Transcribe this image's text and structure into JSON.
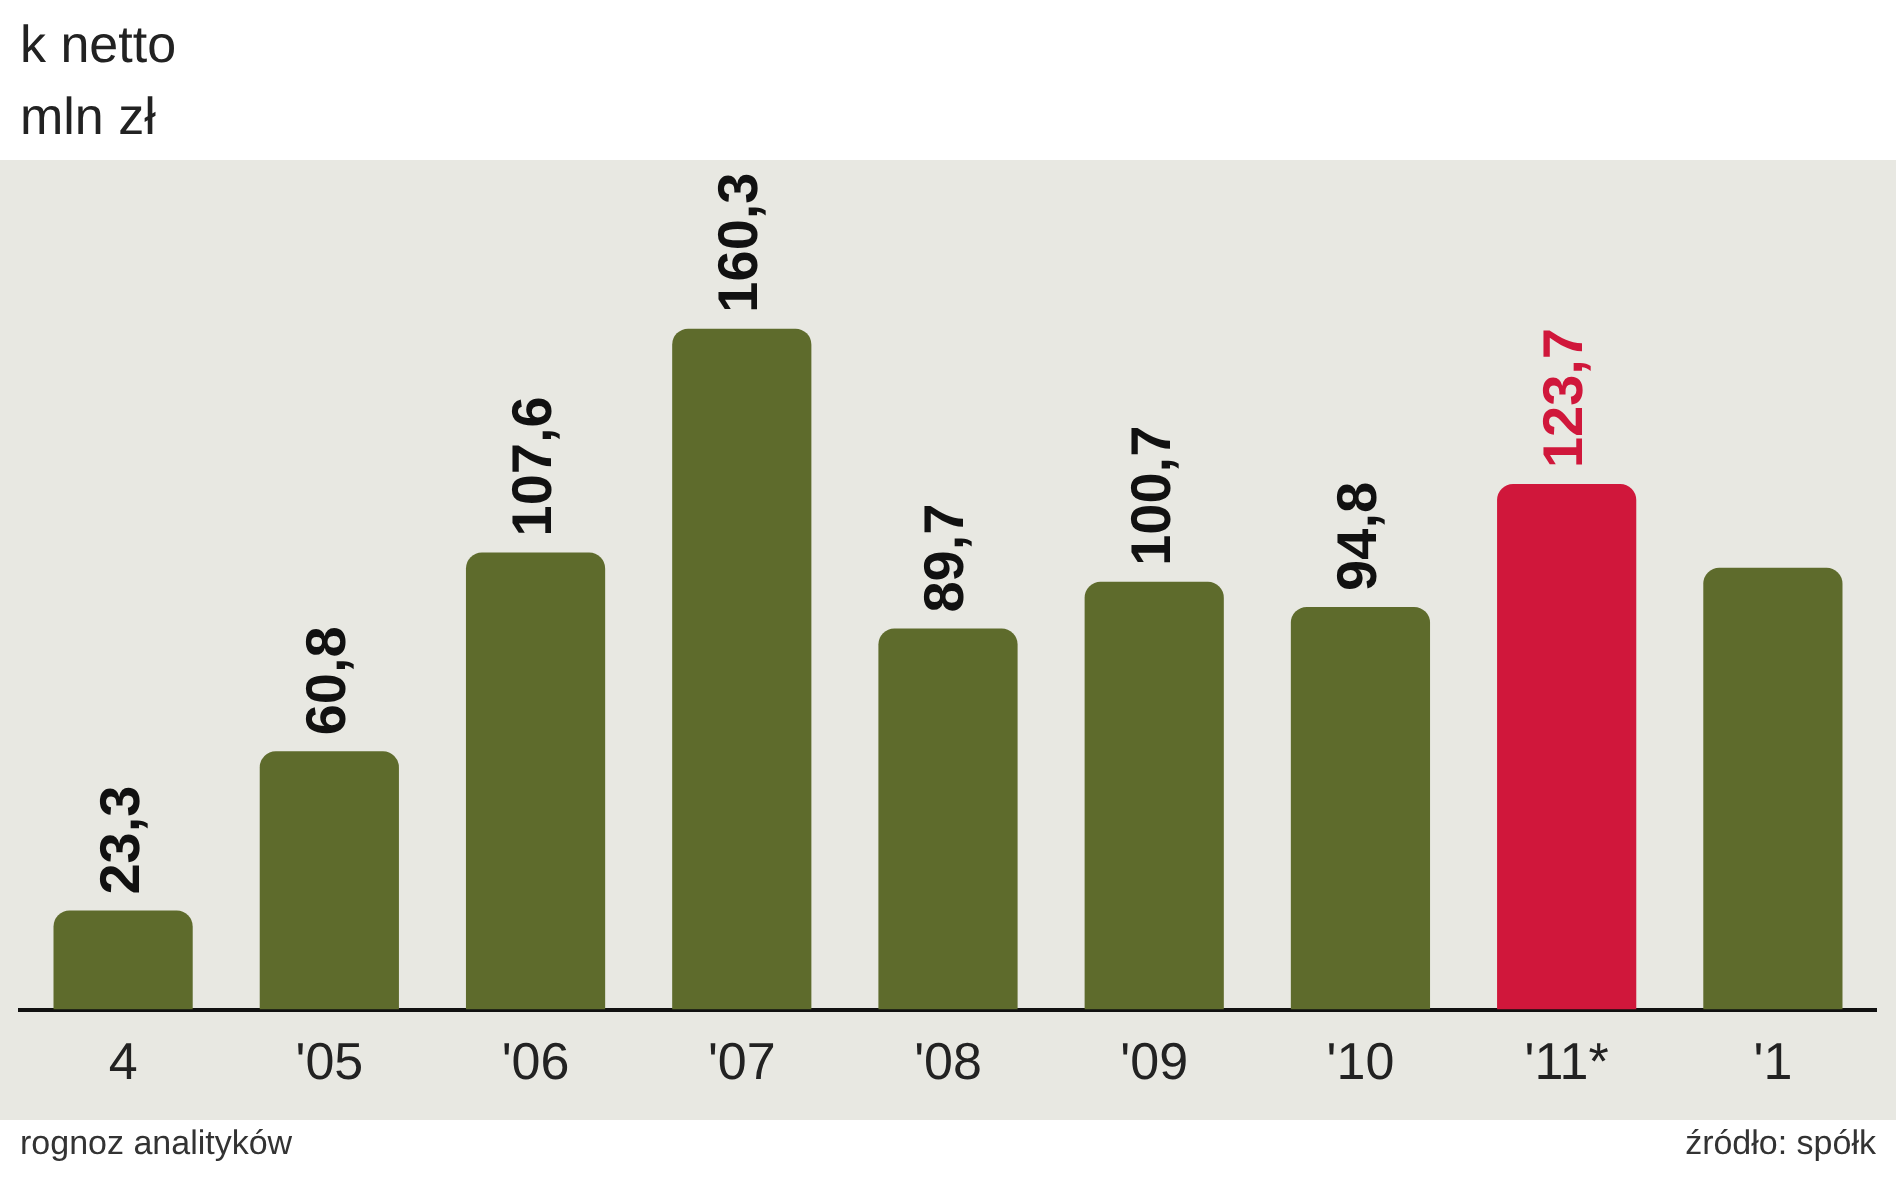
{
  "chart_data": {
    "type": "bar",
    "title": "k netto",
    "subtitle": "mln zł",
    "categories": [
      "4",
      "'05",
      "'06",
      "'07",
      "'08",
      "'09",
      "'10",
      "'11*",
      "'1"
    ],
    "values": [
      23.3,
      60.8,
      107.6,
      160.3,
      89.7,
      100.7,
      94.8,
      123.7,
      104
    ],
    "value_labels": [
      "23,3",
      "60,8",
      "107,6",
      "160,3",
      "89,7",
      "100,7",
      "94,8",
      "123,7",
      null
    ],
    "colors": [
      "#5e6b2c",
      "#5e6b2c",
      "#5e6b2c",
      "#5e6b2c",
      "#5e6b2c",
      "#5e6b2c",
      "#5e6b2c",
      "#d0173b",
      "#5e6b2c"
    ],
    "legend": false,
    "annotations": [
      "rognoz analityków",
      "źródło: spółk"
    ]
  }
}
